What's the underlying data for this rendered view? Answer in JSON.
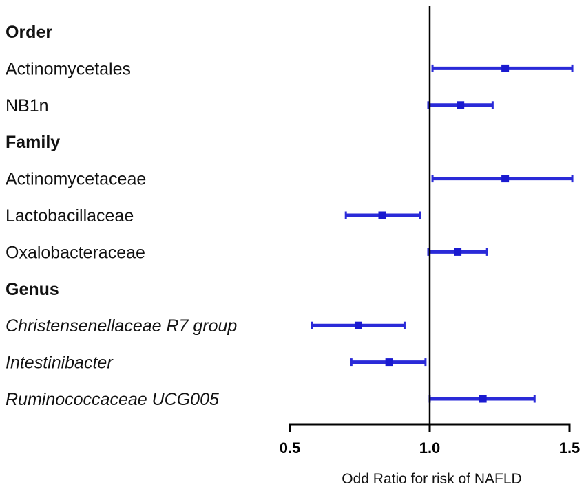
{
  "chart_data": {
    "type": "forest",
    "xlabel": "Odd Ratio for risk of NAFLD",
    "xlim": [
      0.5,
      1.5
    ],
    "reference_line": 1.0,
    "ticks": [
      {
        "value": 0.5,
        "label": "0.5"
      },
      {
        "value": 1.0,
        "label": "1.0"
      },
      {
        "value": 1.5,
        "label": "1.5"
      }
    ],
    "colors": {
      "ci": "#2a2ad8",
      "point": "#1a1ad0",
      "axis": "#000000",
      "text": "#111111"
    },
    "rows": [
      {
        "label": "Order",
        "header": true
      },
      {
        "label": "Actinomycetales",
        "or": 1.27,
        "lower": 1.01,
        "upper": 1.51
      },
      {
        "label": "NB1n",
        "or": 1.11,
        "lower": 0.995,
        "upper": 1.225
      },
      {
        "label": "Family",
        "header": true
      },
      {
        "label": "Actinomycetaceae",
        "or": 1.27,
        "lower": 1.01,
        "upper": 1.51
      },
      {
        "label": "Lactobacillaceae",
        "or": 0.83,
        "lower": 0.7,
        "upper": 0.965
      },
      {
        "label": "Oxalobacteraceae",
        "or": 1.1,
        "lower": 0.995,
        "upper": 1.205
      },
      {
        "label": "Genus",
        "header": true
      },
      {
        "label": "Christensenellaceae R7 group",
        "italic": true,
        "or": 0.745,
        "lower": 0.58,
        "upper": 0.91
      },
      {
        "label": "Intestinibacter",
        "italic": true,
        "or": 0.855,
        "lower": 0.72,
        "upper": 0.985
      },
      {
        "label": "Ruminococcaceae UCG005",
        "italic": true,
        "or": 1.19,
        "lower": 1.0,
        "upper": 1.375
      }
    ]
  }
}
